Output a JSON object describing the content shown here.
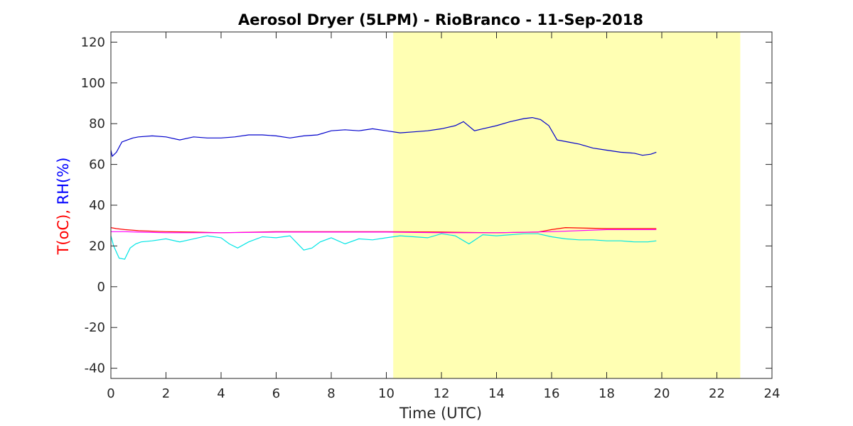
{
  "chart_data": {
    "type": "line",
    "title": "Aerosol Dryer (5LPM) - RioBranco - 11-Sep-2018",
    "xlabel": "Time (UTC)",
    "ylabel_parts": [
      {
        "text": "T(oC),",
        "color": "#ff0000"
      },
      {
        "text": " RH(%)",
        "color": "#0000ff"
      }
    ],
    "xlim": [
      0,
      24
    ],
    "ylim": [
      -45,
      125
    ],
    "xticks": [
      0,
      2,
      4,
      6,
      8,
      10,
      12,
      14,
      16,
      18,
      20,
      22,
      24
    ],
    "yticks": [
      -40,
      -20,
      0,
      20,
      40,
      60,
      80,
      100,
      120
    ],
    "night_shade": {
      "x_start": 10.25,
      "x_end": 22.85,
      "color": "#ffffb3"
    },
    "series": [
      {
        "color": "#0000cc",
        "x": [
          0,
          0.05,
          0.2,
          0.4,
          0.6,
          0.8,
          1.0,
          1.5,
          2.0,
          2.5,
          3.0,
          3.5,
          4.0,
          4.5,
          5.0,
          5.5,
          6.0,
          6.5,
          7.0,
          7.5,
          8.0,
          8.5,
          9.0,
          9.5,
          10.0,
          10.5,
          11.0,
          11.5,
          12.0,
          12.5,
          12.8,
          13.2,
          13.5,
          14.0,
          14.5,
          15.0,
          15.3,
          15.6,
          15.9,
          16.2,
          16.6,
          17.0,
          17.5,
          18.0,
          18.5,
          19.0,
          19.3,
          19.6,
          19.8
        ],
        "y": [
          67,
          64,
          66,
          71,
          72,
          73,
          73.5,
          74,
          73.5,
          72,
          73.5,
          73,
          73,
          73.5,
          74.5,
          74.5,
          74,
          73,
          74,
          74.5,
          76.5,
          77,
          76.5,
          77.5,
          76.5,
          75.5,
          76,
          76.5,
          77.5,
          79,
          81,
          76.5,
          77.5,
          79,
          81,
          82.5,
          83,
          82,
          79,
          72,
          71,
          70,
          68,
          67,
          66,
          65.5,
          64.5,
          65,
          66
        ]
      },
      {
        "color": "#ff0000",
        "x": [
          0,
          0.2,
          0.5,
          1.0,
          2.0,
          3.0,
          4.0,
          6.0,
          8.0,
          10.0,
          12.0,
          14.0,
          15.5,
          16.0,
          16.5,
          18.0,
          19.8
        ],
        "y": [
          29,
          28.5,
          28,
          27.5,
          27,
          26.8,
          26.5,
          27,
          27,
          27,
          26.8,
          26.5,
          26.8,
          28,
          29,
          28.5,
          28.5
        ]
      },
      {
        "color": "#ff00ff",
        "x": [
          0,
          0.5,
          1.0,
          2.0,
          3.0,
          4.0,
          6.0,
          8.0,
          10.0,
          12.0,
          14.0,
          16.0,
          18.0,
          19.8
        ],
        "y": [
          27,
          27,
          26.8,
          26.5,
          26.5,
          26.5,
          26.8,
          26.8,
          26.8,
          26.5,
          26.5,
          27,
          28,
          28
        ]
      },
      {
        "color": "#00e5e5",
        "x": [
          0,
          0.1,
          0.3,
          0.5,
          0.7,
          0.9,
          1.1,
          1.5,
          2.0,
          2.5,
          3.0,
          3.5,
          4.0,
          4.3,
          4.6,
          5.0,
          5.5,
          6.0,
          6.5,
          7.0,
          7.3,
          7.6,
          8.0,
          8.5,
          9.0,
          9.5,
          10.0,
          10.5,
          11.0,
          11.5,
          12.0,
          12.5,
          13.0,
          13.5,
          14.0,
          14.5,
          15.0,
          15.5,
          16.0,
          16.5,
          17.0,
          17.5,
          18.0,
          18.5,
          19.0,
          19.5,
          19.8
        ],
        "y": [
          25,
          20,
          14,
          13.5,
          19,
          21,
          22,
          22.5,
          23.5,
          22,
          23.5,
          25,
          24,
          21,
          19,
          22,
          24.5,
          24,
          25,
          18,
          19,
          22,
          24,
          21,
          23.5,
          23,
          24,
          25,
          24.5,
          24,
          26,
          25,
          21,
          25.5,
          25,
          25.5,
          26,
          26,
          24.5,
          23.5,
          23,
          23,
          22.5,
          22.5,
          22,
          22,
          22.5
        ]
      }
    ]
  }
}
